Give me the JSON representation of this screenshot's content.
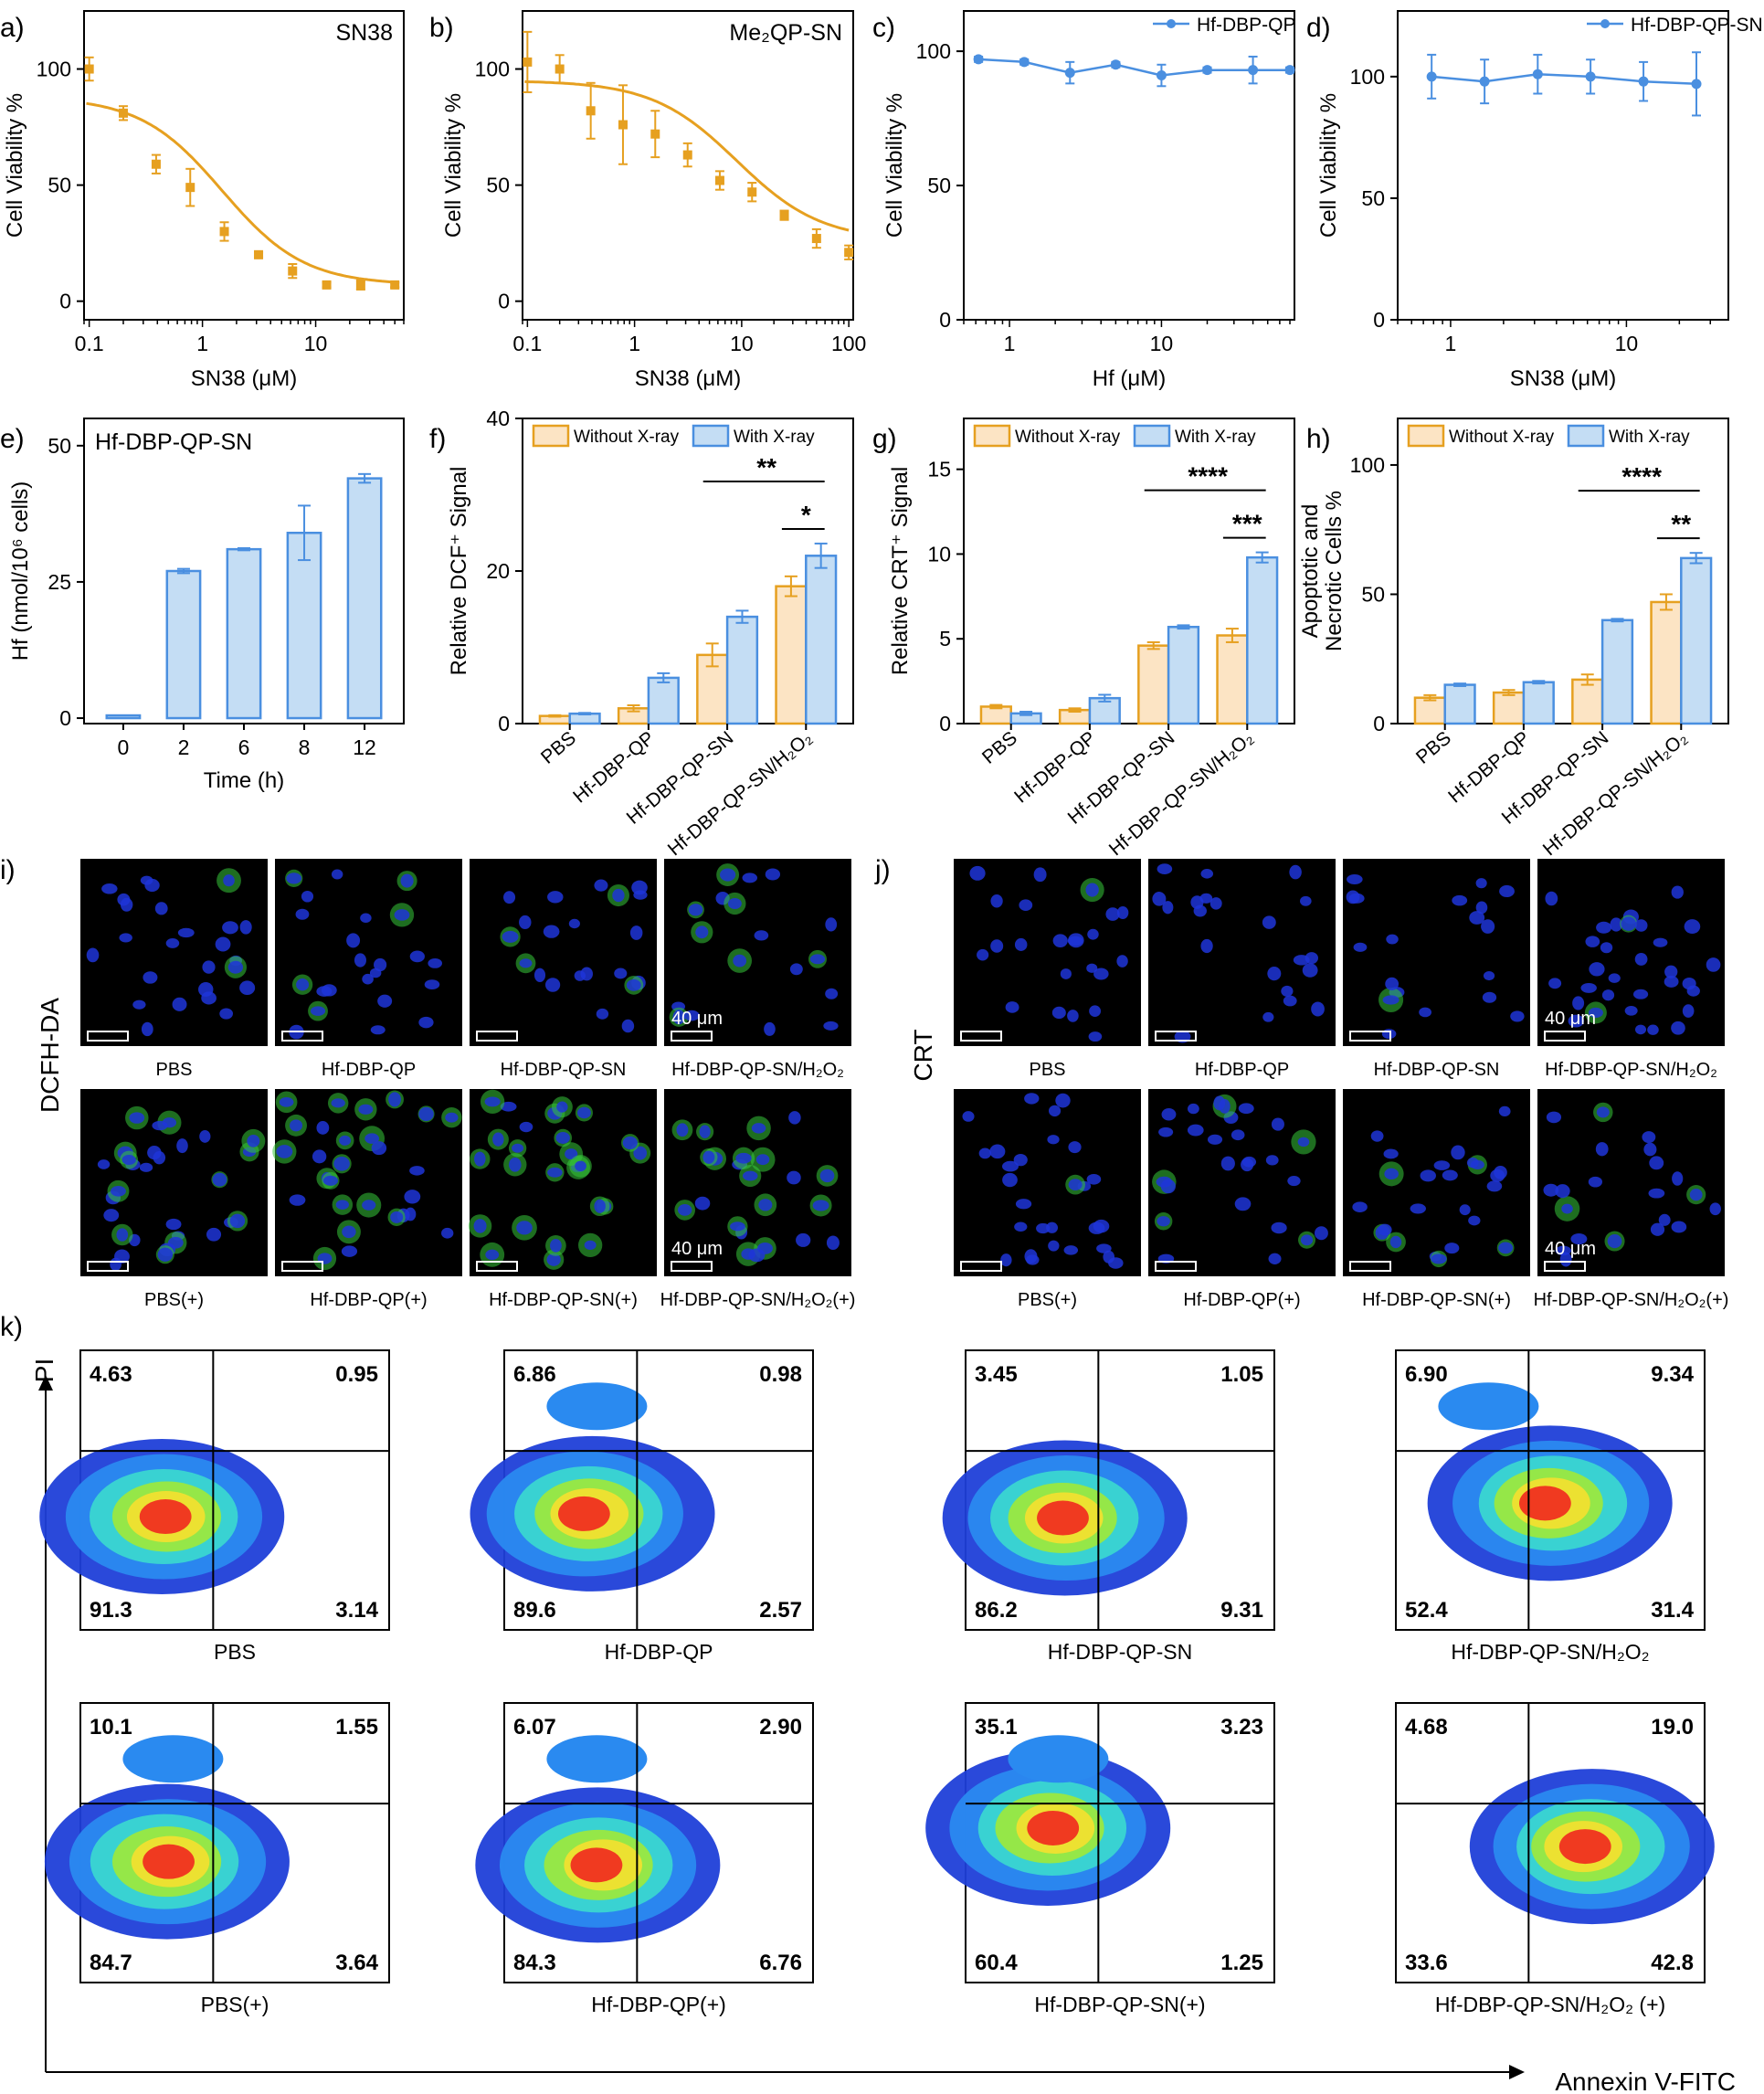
{
  "colors": {
    "orange": "#E6A020",
    "orange_fill": "#FCE4C4",
    "blue": "#4A8FE0",
    "blue_fill": "#C4DDF4",
    "micro_bg": "#000000",
    "nuclei": "#1F35D8",
    "green": "#36C83A"
  },
  "chart_data": [
    {
      "panel": "a)",
      "type": "scatter",
      "title": "SN38",
      "xlabel": "SN38 (μM)",
      "ylabel": "Cell Viability %",
      "xscale": "log",
      "xlim": [
        0.09,
        60
      ],
      "ylim": [
        -8,
        125
      ],
      "xticks": [
        "0.1",
        "1",
        "10"
      ],
      "yticks": [
        "0",
        "50",
        "100"
      ],
      "series": [
        {
          "color": "orange",
          "x": [
            0.1,
            0.2,
            0.39,
            0.78,
            1.56,
            3.13,
            6.25,
            12.5,
            25,
            50
          ],
          "y": [
            100,
            81,
            59,
            49,
            30,
            20,
            13,
            7,
            7,
            7
          ],
          "err": [
            5,
            3,
            4,
            8,
            4,
            1,
            3,
            1,
            2,
            1
          ],
          "fit": {
            "top": 88,
            "bottom": 7,
            "ic50": 1.5,
            "hill": 1.2
          }
        }
      ]
    },
    {
      "panel": "b)",
      "type": "scatter",
      "title": "Me₂QP-SN",
      "xlabel": "SN38 (μM)",
      "ylabel": "Cell Viability %",
      "xscale": "log",
      "xlim": [
        0.09,
        110
      ],
      "ylim": [
        -8,
        125
      ],
      "xticks": [
        "0.1",
        "1",
        "10",
        "100"
      ],
      "yticks": [
        "0",
        "50",
        "100"
      ],
      "series": [
        {
          "color": "orange",
          "x": [
            0.1,
            0.2,
            0.39,
            0.78,
            1.56,
            3.13,
            6.25,
            12.5,
            25,
            50,
            100
          ],
          "y": [
            103,
            100,
            82,
            76,
            72,
            63,
            52,
            47,
            37,
            27,
            21
          ],
          "err": [
            13,
            6,
            12,
            17,
            10,
            5,
            4,
            4,
            2,
            4,
            3
          ],
          "fit": {
            "top": 95,
            "bottom": 26,
            "ic50": 9,
            "hill": 1.1
          }
        }
      ]
    },
    {
      "panel": "c)",
      "type": "line",
      "legend": [
        "Hf-DBP-QP"
      ],
      "xlabel": "Hf (μM)",
      "ylabel": "Cell Viability %",
      "xscale": "log",
      "xlim": [
        0.5,
        75
      ],
      "ylim": [
        0,
        115
      ],
      "xticks": [
        "1",
        "10"
      ],
      "yticks": [
        "0",
        "50",
        "100"
      ],
      "series": [
        {
          "name": "Hf-DBP-QP",
          "color": "blue",
          "x": [
            0.625,
            1.25,
            2.5,
            5,
            10,
            20,
            40,
            70
          ],
          "y": [
            97,
            96,
            92,
            95,
            91,
            93,
            93,
            93
          ],
          "err": [
            1,
            1,
            4,
            1,
            4,
            1,
            5,
            1
          ]
        }
      ]
    },
    {
      "panel": "d)",
      "type": "line",
      "legend": [
        "Hf-DBP-QP-SN"
      ],
      "xlabel": "SN38 (μM)",
      "ylabel": "Cell Viability %",
      "xscale": "log",
      "xlim": [
        0.5,
        38
      ],
      "ylim": [
        0,
        127
      ],
      "xticks": [
        "1",
        "10"
      ],
      "yticks": [
        "0",
        "50",
        "100"
      ],
      "series": [
        {
          "name": "Hf-DBP-QP-SN",
          "color": "blue",
          "x": [
            0.78,
            1.56,
            3.13,
            6.25,
            12.5,
            25
          ],
          "y": [
            100,
            98,
            101,
            100,
            98,
            97
          ],
          "err": [
            9,
            9,
            8,
            7,
            8,
            13
          ]
        }
      ]
    },
    {
      "panel": "e)",
      "type": "bar",
      "title": "Hf-DBP-QP-SN",
      "xlabel": "Time (h)",
      "ylabel": "Hf (nmol/10⁶ cells)",
      "categories": [
        "0",
        "2",
        "6",
        "8",
        "12"
      ],
      "ylim": [
        -1,
        55
      ],
      "yticks": [
        "0",
        "25",
        "50"
      ],
      "series": [
        {
          "color": "blue",
          "values": [
            0.5,
            27,
            31,
            34,
            44
          ],
          "err": [
            0,
            0.4,
            0.2,
            5,
            0.8
          ]
        }
      ]
    },
    {
      "panel": "f)",
      "type": "bar",
      "ylabel": "Relative DCF⁺ Signal",
      "categories": [
        "PBS",
        "Hf-DBP-QP",
        "Hf-DBP-QP-SN",
        "Hf-DBP-QP-SN/H₂O₂"
      ],
      "ylim": [
        0,
        40
      ],
      "yticks": [
        "0",
        "20",
        "40"
      ],
      "legend": [
        "Without X-ray",
        "With X-ray"
      ],
      "series": [
        {
          "name": "Without X-ray",
          "color": "orange",
          "values": [
            1,
            2,
            9,
            18
          ],
          "err": [
            0.1,
            0.4,
            1.5,
            1.3
          ]
        },
        {
          "name": "With X-ray",
          "color": "blue",
          "values": [
            1.3,
            6,
            14,
            22
          ],
          "err": [
            0.1,
            0.6,
            0.8,
            1.6
          ]
        }
      ],
      "significance": [
        {
          "label": "**",
          "from": "2a",
          "to": "3b"
        },
        {
          "label": "*",
          "from": "3a",
          "to": "3b"
        }
      ]
    },
    {
      "panel": "g)",
      "type": "bar",
      "ylabel": "Relative CRT⁺ Signal",
      "categories": [
        "PBS",
        "Hf-DBP-QP",
        "Hf-DBP-QP-SN",
        "Hf-DBP-QP-SN/H₂O₂"
      ],
      "ylim": [
        0,
        18
      ],
      "yticks": [
        "0",
        "5",
        "10",
        "15"
      ],
      "legend": [
        "Without X-ray",
        "With X-ray"
      ],
      "series": [
        {
          "name": "Without X-ray",
          "color": "orange",
          "values": [
            1,
            0.8,
            4.6,
            5.2
          ],
          "err": [
            0.1,
            0.1,
            0.2,
            0.4
          ]
        },
        {
          "name": "With X-ray",
          "color": "blue",
          "values": [
            0.6,
            1.5,
            5.7,
            9.8
          ],
          "err": [
            0.1,
            0.2,
            0.1,
            0.3
          ]
        }
      ],
      "significance": [
        {
          "label": "****",
          "from": "2a",
          "to": "3b"
        },
        {
          "label": "***",
          "from": "3a",
          "to": "3b"
        }
      ]
    },
    {
      "panel": "h)",
      "type": "bar",
      "ylabel": "Apoptotic and Necrotic Cells %",
      "categories": [
        "PBS",
        "Hf-DBP-QP",
        "Hf-DBP-QP-SN",
        "Hf-DBP-QP-SN/H₂O₂"
      ],
      "ylim": [
        0,
        118
      ],
      "yticks": [
        "0",
        "50",
        "100"
      ],
      "legend": [
        "Without X-ray",
        "With X-ray"
      ],
      "series": [
        {
          "name": "Without X-ray",
          "color": "orange",
          "values": [
            10,
            12,
            17,
            47
          ],
          "err": [
            1,
            1,
            2,
            3
          ]
        },
        {
          "name": "With X-ray",
          "color": "blue",
          "values": [
            15,
            16,
            40,
            64
          ],
          "err": [
            0.5,
            0.5,
            0.5,
            2
          ]
        }
      ],
      "significance": [
        {
          "label": "****",
          "from": "2a",
          "to": "3b"
        },
        {
          "label": "**",
          "from": "3a",
          "to": "3b"
        }
      ]
    }
  ],
  "ylabel_h_lines": [
    "Apoptotic and",
    "Necrotic Cells %"
  ],
  "micro_i": {
    "panel": "i)",
    "side_label": "DCFH-DA",
    "scalebar": "40 μm",
    "top": [
      "PBS",
      "Hf-DBP-QP",
      "Hf-DBP-QP-SN",
      "Hf-DBP-QP-SN/H₂O₂"
    ],
    "bottom": [
      "PBS(+)",
      "Hf-DBP-QP(+)",
      "Hf-DBP-QP-SN(+)",
      "Hf-DBP-QP-SN/H₂O₂(+)"
    ],
    "green_intensity": [
      0.05,
      0.05,
      0.15,
      0.35,
      0.4,
      0.55,
      0.9,
      0.6
    ]
  },
  "micro_j": {
    "panel": "j)",
    "side_label": "CRT",
    "scalebar": "40 μm",
    "top": [
      "PBS",
      "Hf-DBP-QP",
      "Hf-DBP-QP-SN",
      "Hf-DBP-QP-SN/H₂O₂"
    ],
    "bottom": [
      "PBS(+)",
      "Hf-DBP-QP(+)",
      "Hf-DBP-QP-SN(+)",
      "Hf-DBP-QP-SN/H₂O₂(+)"
    ],
    "green_intensity": [
      0.02,
      0.03,
      0.05,
      0.08,
      0.08,
      0.1,
      0.12,
      0.15
    ]
  },
  "flow_k": {
    "panel": "k)",
    "y_axis": "PI",
    "x_axis": "Annexin V-FITC",
    "plots": [
      {
        "label": "PBS",
        "ul": "4.63",
        "ur": "0.95",
        "ll": "91.3",
        "lr": "3.14"
      },
      {
        "label": "Hf-DBP-QP",
        "ul": "6.86",
        "ur": "0.98",
        "ll": "89.6",
        "lr": "2.57"
      },
      {
        "label": "Hf-DBP-QP-SN",
        "ul": "3.45",
        "ur": "1.05",
        "ll": "86.2",
        "lr": "9.31"
      },
      {
        "label": "Hf-DBP-QP-SN/H₂O₂",
        "ul": "6.90",
        "ur": "9.34",
        "ll": "52.4",
        "lr": "31.4"
      },
      {
        "label": "PBS(+)",
        "ul": "10.1",
        "ur": "1.55",
        "ll": "84.7",
        "lr": "3.64"
      },
      {
        "label": "Hf-DBP-QP(+)",
        "ul": "6.07",
        "ur": "2.90",
        "ll": "84.3",
        "lr": "6.76"
      },
      {
        "label": "Hf-DBP-QP-SN(+)",
        "ul": "35.1",
        "ur": "3.23",
        "ll": "60.4",
        "lr": "1.25"
      },
      {
        "label": "Hf-DBP-QP-SN/H₂O₂ (+)",
        "ul": "4.68",
        "ur": "19.0",
        "ll": "33.6",
        "lr": "42.8"
      }
    ]
  }
}
